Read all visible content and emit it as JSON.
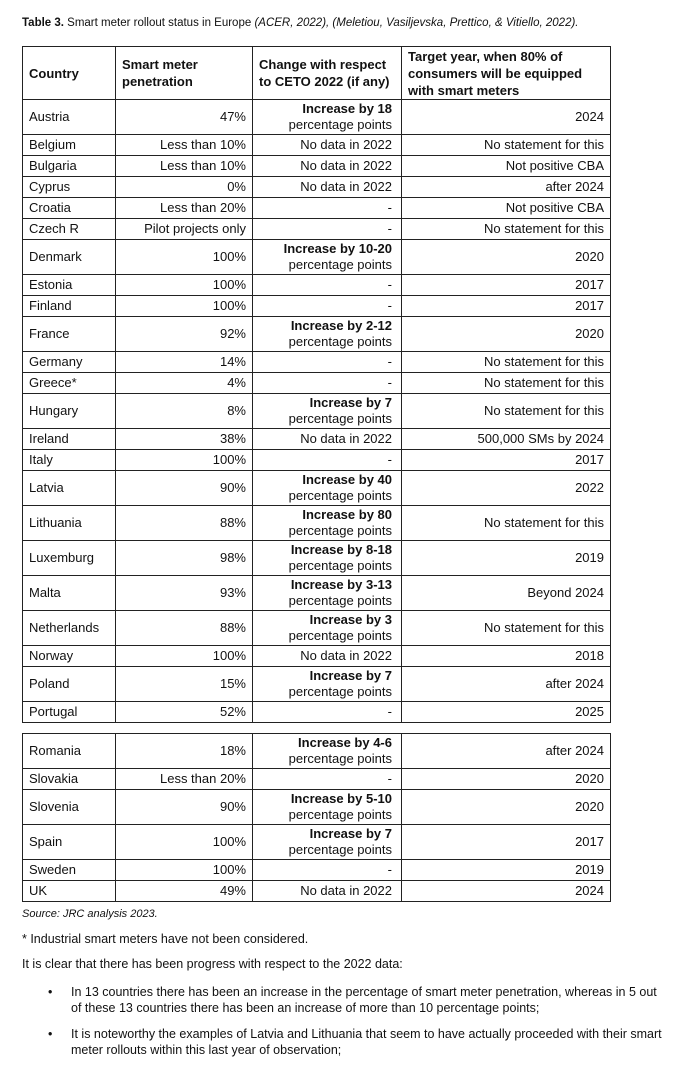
{
  "caption": {
    "label": "Table 3.",
    "text": " Smart meter rollout status in Europe ",
    "cite": "(ACER, 2022), (Meletiou, Vasiljevska, Prettico, & Vitiello, 2022)."
  },
  "headers": [
    "Country",
    "Smart meter penetration",
    "Change with respect to CETO 2022  (if any)",
    "Target year, when 80% of consumers will be equipped with smart meters"
  ],
  "rows": [
    {
      "country": "Austria",
      "penetration": "47%",
      "change": "Increase by 18",
      "change2": "percentage points",
      "target": "2024"
    },
    {
      "country": "Belgium",
      "penetration": "Less than 10%",
      "change": "No data in 2022",
      "target": "No statement for this"
    },
    {
      "country": "Bulgaria",
      "penetration": "Less than 10%",
      "change": "No data in 2022",
      "target": "Not positive CBA"
    },
    {
      "country": "Cyprus",
      "penetration": "0%",
      "change": "No data in 2022",
      "target": "after 2024"
    },
    {
      "country": "Croatia",
      "penetration": "Less than 20%",
      "change": "-",
      "target": "Not positive CBA"
    },
    {
      "country": "Czech R",
      "penetration": "Pilot projects only",
      "change": "-",
      "target": "No statement for this"
    },
    {
      "country": "Denmark",
      "penetration": "100%",
      "change": "Increase by 10-20",
      "change2": "percentage points",
      "target": "2020"
    },
    {
      "country": "Estonia",
      "penetration": "100%",
      "change": "-",
      "target": "2017"
    },
    {
      "country": "Finland",
      "penetration": "100%",
      "change": "-",
      "target": "2017"
    },
    {
      "country": "France",
      "penetration": "92%",
      "change": "Increase by 2-12",
      "change2": "percentage points",
      "target": "2020"
    },
    {
      "country": "Germany",
      "penetration": "14%",
      "change": "-",
      "target": "No statement for this"
    },
    {
      "country": "Greece*",
      "penetration": "4%",
      "change": "-",
      "target": "No statement for this"
    },
    {
      "country": "Hungary",
      "penetration": "8%",
      "change": "Increase by 7",
      "change2": "percentage points",
      "target": "No statement for this"
    },
    {
      "country": "Ireland",
      "penetration": "38%",
      "change": "No data in 2022",
      "target": "500,000 SMs by 2024"
    },
    {
      "country": "Italy",
      "penetration": "100%",
      "change": "-",
      "target": "2017"
    },
    {
      "country": "Latvia",
      "penetration": "90%",
      "change": "Increase by 40",
      "change2": "percentage points",
      "target": "2022"
    },
    {
      "country": "Lithuania",
      "penetration": "88%",
      "change": "Increase by 80",
      "change2": "percentage points",
      "target": "No statement for this"
    },
    {
      "country": "Luxemburg",
      "penetration": "98%",
      "change": "Increase by 8-18",
      "change2": "percentage points",
      "target": "2019"
    },
    {
      "country": "Malta",
      "penetration": "93%",
      "change": "Increase by 3-13",
      "change2": "percentage points",
      "target": "Beyond 2024"
    },
    {
      "country": "Netherlands",
      "penetration": "88%",
      "change": "Increase by 3",
      "change2": "percentage points",
      "target": "No statement for this"
    },
    {
      "country": "Norway",
      "penetration": "100%",
      "change": "No data in 2022",
      "target": "2018"
    },
    {
      "country": "Poland",
      "penetration": "15%",
      "change": "Increase by 7",
      "change2": "percentage points",
      "target": "after 2024"
    },
    {
      "country": "Portugal",
      "penetration": "52%",
      "change": "-",
      "target": "2025"
    },
    {
      "country": "Romania",
      "penetration": "18%",
      "change": "Increase by 4-6",
      "change2": "percentage points",
      "target": "after 2024"
    },
    {
      "country": "Slovakia",
      "penetration": "Less than 20%",
      "change": "-",
      "target": "2020"
    },
    {
      "country": "Slovenia",
      "penetration": "90%",
      "change": "Increase by 5-10",
      "change2": "percentage points",
      "target": "2020"
    },
    {
      "country": "Spain",
      "penetration": "100%",
      "change": "Increase by 7",
      "change2": "percentage points",
      "target": "2017"
    },
    {
      "country": "Sweden",
      "penetration": "100%",
      "change": "-",
      "target": "2019"
    },
    {
      "country": "UK",
      "penetration": "49%",
      "change": "No data in 2022",
      "target": "2024"
    }
  ],
  "source": "Source: JRC analysis 2023.",
  "note": "* Industrial smart meters have not been considered.",
  "intro": "It is clear that there has been progress with respect to the 2022 data:",
  "bullets": [
    "In 13 countries there has been an increase in the percentage of smart meter penetration, whereas in 5 out of these 13 countries there has been an increase of more than 10 percentage points;",
    "It is noteworthy the examples of Latvia and Lithuania that seem to have actually proceeded with their smart meter rollouts within this last year of observation;"
  ]
}
